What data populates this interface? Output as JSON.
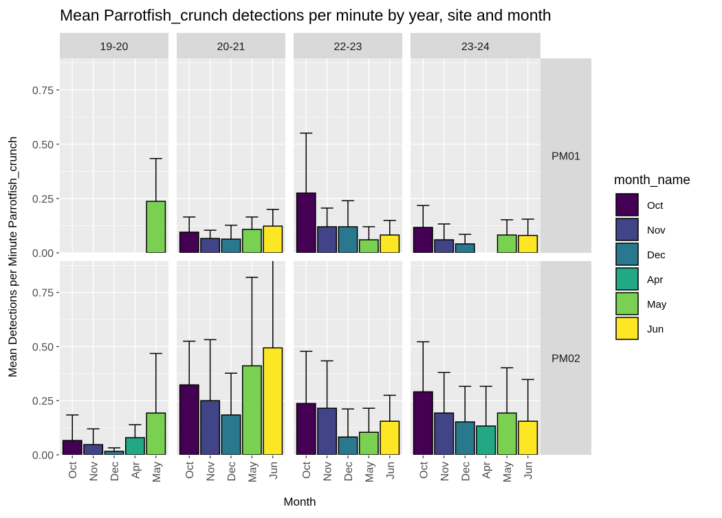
{
  "chart_data": {
    "type": "bar",
    "title": "Mean Parrotfish_crunch detections per minute by year, site and month",
    "xlabel": "Month",
    "ylabel": "Mean Detections per Minute Parrotfish_crunch",
    "ylim": [
      0,
      0.895
    ],
    "yticks": [
      "0.00",
      "0.25",
      "0.50",
      "0.75"
    ],
    "ytick_values": [
      0,
      0.25,
      0.5,
      0.75
    ],
    "grid": true,
    "legend": {
      "title": "month_name",
      "position": "right",
      "entries": [
        "Oct",
        "Nov",
        "Dec",
        "Apr",
        "May",
        "Jun"
      ]
    },
    "colors": {
      "Oct": "#440154",
      "Nov": "#414487",
      "Dec": "#2A788E",
      "Apr": "#22A884",
      "May": "#7AD151",
      "Jun": "#FDE725"
    },
    "column_facets": [
      "19-20",
      "20-21",
      "22-23",
      "23-24"
    ],
    "row_facets": [
      "PM01",
      "PM02"
    ],
    "panels": [
      {
        "row": "PM01",
        "col": "19-20",
        "categories": [
          "Oct",
          "Nov",
          "Dec",
          "Apr",
          "May"
        ],
        "bars": [
          {
            "month": "May",
            "mean": 0.237,
            "ymax": 0.434
          }
        ]
      },
      {
        "row": "PM01",
        "col": "20-21",
        "categories": [
          "Oct",
          "Nov",
          "Dec",
          "May",
          "Jun"
        ],
        "bars": [
          {
            "month": "Oct",
            "mean": 0.095,
            "ymax": 0.165
          },
          {
            "month": "Nov",
            "mean": 0.066,
            "ymax": 0.104
          },
          {
            "month": "Dec",
            "mean": 0.063,
            "ymax": 0.127
          },
          {
            "month": "May",
            "mean": 0.108,
            "ymax": 0.165
          },
          {
            "month": "Jun",
            "mean": 0.123,
            "ymax": 0.2
          }
        ]
      },
      {
        "row": "PM01",
        "col": "22-23",
        "categories": [
          "Oct",
          "Nov",
          "Dec",
          "May",
          "Jun"
        ],
        "bars": [
          {
            "month": "Oct",
            "mean": 0.275,
            "ymax": 0.551
          },
          {
            "month": "Nov",
            "mean": 0.12,
            "ymax": 0.206
          },
          {
            "month": "Dec",
            "mean": 0.12,
            "ymax": 0.24
          },
          {
            "month": "May",
            "mean": 0.06,
            "ymax": 0.12
          },
          {
            "month": "Jun",
            "mean": 0.082,
            "ymax": 0.149
          }
        ]
      },
      {
        "row": "PM01",
        "col": "23-24",
        "categories": [
          "Oct",
          "Nov",
          "Dec",
          "Apr",
          "May",
          "Jun"
        ],
        "bars": [
          {
            "month": "Oct",
            "mean": 0.117,
            "ymax": 0.218
          },
          {
            "month": "Nov",
            "mean": 0.06,
            "ymax": 0.133
          },
          {
            "month": "Dec",
            "mean": 0.041,
            "ymax": 0.085
          },
          {
            "month": "May",
            "mean": 0.082,
            "ymax": 0.152
          },
          {
            "month": "Jun",
            "mean": 0.08,
            "ymax": 0.155
          }
        ]
      },
      {
        "row": "PM02",
        "col": "19-20",
        "categories": [
          "Oct",
          "Nov",
          "Dec",
          "Apr",
          "May"
        ],
        "bars": [
          {
            "month": "Oct",
            "mean": 0.066,
            "ymax": 0.184
          },
          {
            "month": "Nov",
            "mean": 0.047,
            "ymax": 0.12
          },
          {
            "month": "Dec",
            "mean": 0.016,
            "ymax": 0.032
          },
          {
            "month": "Apr",
            "mean": 0.079,
            "ymax": 0.139
          },
          {
            "month": "May",
            "mean": 0.193,
            "ymax": 0.468
          }
        ]
      },
      {
        "row": "PM02",
        "col": "20-21",
        "categories": [
          "Oct",
          "Nov",
          "Dec",
          "May",
          "Jun"
        ],
        "bars": [
          {
            "month": "Oct",
            "mean": 0.323,
            "ymax": 0.525
          },
          {
            "month": "Nov",
            "mean": 0.25,
            "ymax": 0.532
          },
          {
            "month": "Dec",
            "mean": 0.184,
            "ymax": 0.377
          },
          {
            "month": "May",
            "mean": 0.411,
            "ymax": 0.82
          },
          {
            "month": "Jun",
            "mean": 0.494,
            "ymax": 0.9
          }
        ]
      },
      {
        "row": "PM02",
        "col": "22-23",
        "categories": [
          "Oct",
          "Nov",
          "Dec",
          "May",
          "Jun"
        ],
        "bars": [
          {
            "month": "Oct",
            "mean": 0.237,
            "ymax": 0.478
          },
          {
            "month": "Nov",
            "mean": 0.215,
            "ymax": 0.434
          },
          {
            "month": "Dec",
            "mean": 0.082,
            "ymax": 0.212
          },
          {
            "month": "May",
            "mean": 0.104,
            "ymax": 0.215
          },
          {
            "month": "Jun",
            "mean": 0.155,
            "ymax": 0.275
          }
        ]
      },
      {
        "row": "PM02",
        "col": "23-24",
        "categories": [
          "Oct",
          "Nov",
          "Dec",
          "Apr",
          "May",
          "Jun"
        ],
        "bars": [
          {
            "month": "Oct",
            "mean": 0.291,
            "ymax": 0.522
          },
          {
            "month": "Nov",
            "mean": 0.193,
            "ymax": 0.38
          },
          {
            "month": "Dec",
            "mean": 0.152,
            "ymax": 0.316
          },
          {
            "month": "Apr",
            "mean": 0.133,
            "ymax": 0.316
          },
          {
            "month": "May",
            "mean": 0.193,
            "ymax": 0.402
          },
          {
            "month": "Jun",
            "mean": 0.155,
            "ymax": 0.348
          }
        ]
      }
    ]
  }
}
